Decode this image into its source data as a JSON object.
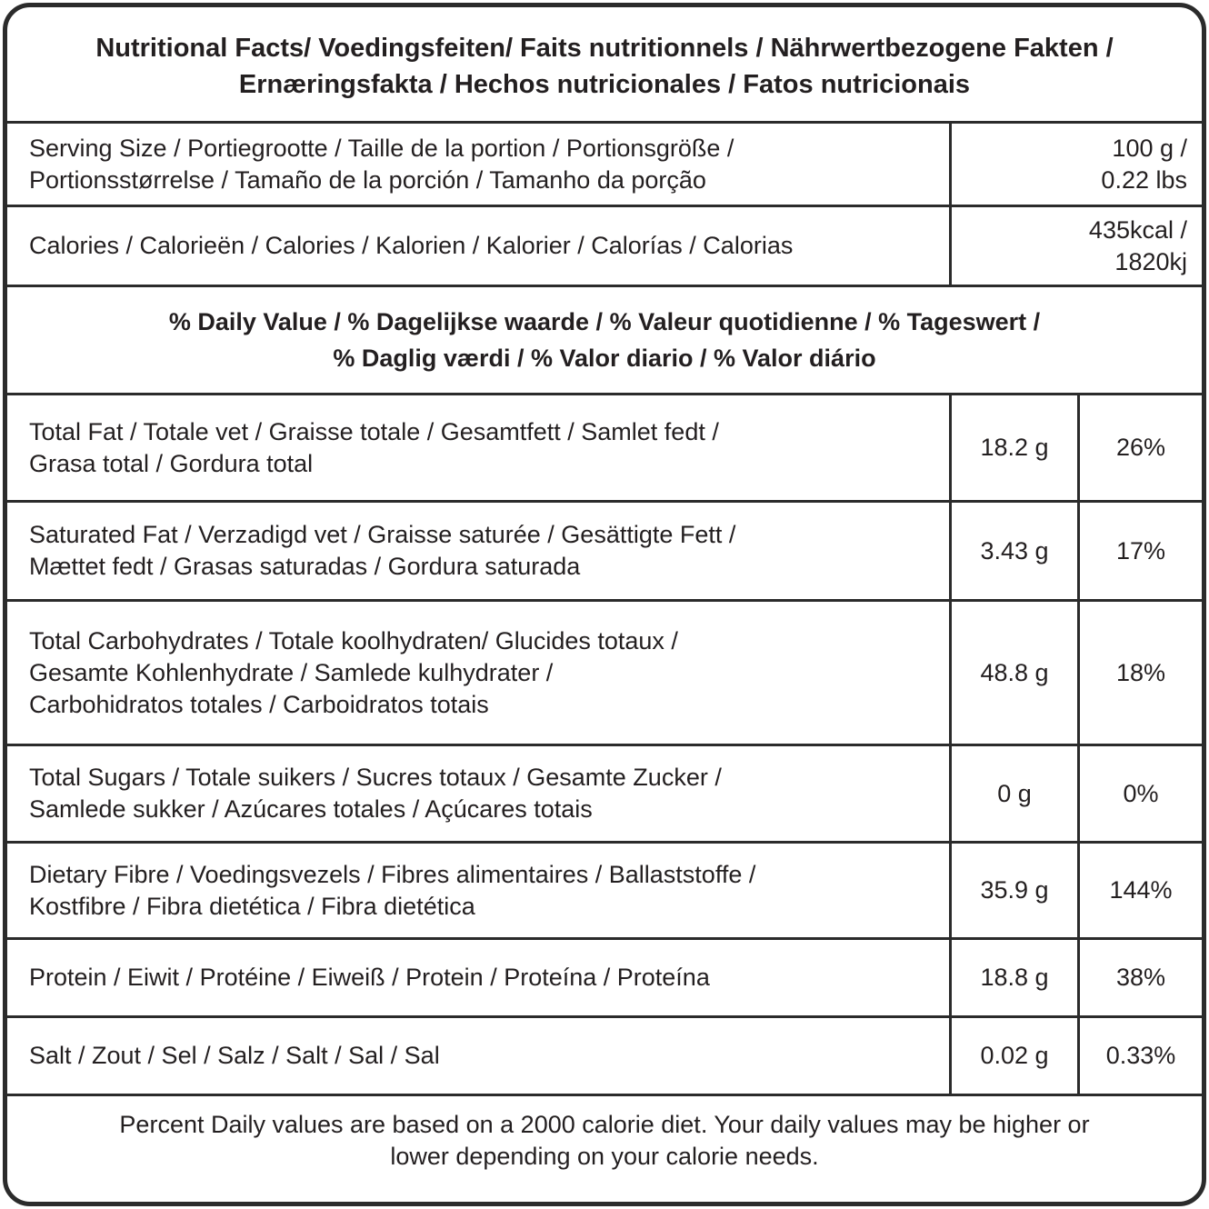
{
  "title": "Nutritional Facts/ Voedingsfeiten/ Faits nutritionnels / Nährwertbezogene Fakten /\nErnæringsfakta / Hechos nutricionales / Fatos nutricionais",
  "serving": {
    "label": "Serving Size / Portiegrootte / Taille de la portion / Portionsgröße /\nPortionsstørrelse / Tamaño de la porción / Tamanho da porção",
    "value": "100 g /\n0.22 lbs"
  },
  "calories": {
    "label": "Calories / Calorieën / Calories / Kalorien / Kalorier / Calorías / Calorias",
    "value": "435kcal /\n1820kj"
  },
  "daily_value_header": "% Daily Value / % Dagelijkse waarde / % Valeur quotidienne / % Tageswert /\n% Daglig værdi / % Valor diario / % Valor diário",
  "nutrients": [
    {
      "label": "Total Fat / Totale vet / Graisse totale / Gesamtfett / Samlet fedt /\nGrasa total / Gordura total",
      "amount": "18.2 g",
      "percent": "26%"
    },
    {
      "label": "Saturated Fat / Verzadigd vet / Graisse saturée / Gesättigte Fett /\nMættet fedt / Grasas saturadas / Gordura saturada",
      "amount": "3.43 g",
      "percent": "17%"
    },
    {
      "label": "Total Carbohydrates / Totale koolhydraten/ Glucides totaux /\nGesamte Kohlenhydrate / Samlede kulhydrater /\nCarbohidratos totales / Carboidratos totais",
      "amount": "48.8 g",
      "percent": "18%"
    },
    {
      "label": "Total Sugars / Totale suikers / Sucres totaux / Gesamte Zucker /\nSamlede sukker / Azúcares totales / Açúcares totais",
      "amount": "0 g",
      "percent": "0%"
    },
    {
      "label": "Dietary Fibre / Voedingsvezels / Fibres alimentaires / Ballaststoffe /\nKostfibre / Fibra dietética / Fibra dietética",
      "amount": "35.9 g",
      "percent": "144%"
    },
    {
      "label": "Protein / Eiwit / Protéine / Eiweiß / Protein / Proteína / Proteína",
      "amount": "18.8 g",
      "percent": "38%"
    },
    {
      "label": "Salt / Zout / Sel / Salz / Salt / Sal / Sal",
      "amount": "0.02 g",
      "percent": "0.33%"
    }
  ],
  "footer": "Percent Daily values are based on a 2000 calorie diet. Your daily values may be higher or\nlower depending on your calorie needs."
}
